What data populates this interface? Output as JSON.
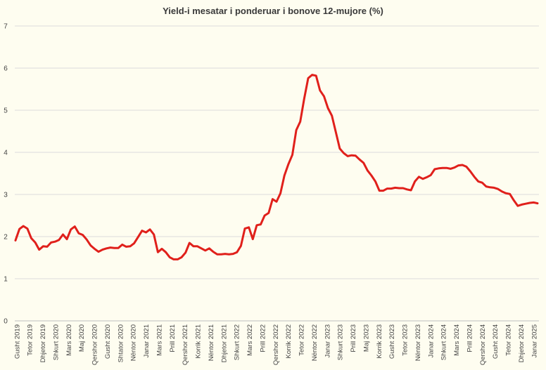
{
  "chart_data": {
    "type": "line",
    "title": "Yield-i mesatar i ponderuar i bonove 12-mujore (%)",
    "xlabel": "",
    "ylabel": "",
    "ylim": [
      0,
      7
    ],
    "yticks": [
      0,
      1,
      2,
      3,
      4,
      5,
      6,
      7
    ],
    "grid": true,
    "legend": "none",
    "line_color": "#e0201b",
    "x_tick_labels": [
      "Gusht 2019",
      "Tetor 2019",
      "Dhjetor 2019",
      "Shkurt 2020",
      "Mars 2020",
      "Maj 2020",
      "Qershor 2020",
      "Gusht 2020",
      "Shtator 2020",
      "Nëntor 2020",
      "Janar 2021",
      "Mars 2021",
      "Prill 2021",
      "Qershor 2021",
      "Korrik 2021",
      "Nëntor 2021",
      "Dhjetor 2021",
      "Shkurt 2022",
      "Mars 2022",
      "Prill 2022",
      "Qershor 2022",
      "Korrik 2022",
      "Tetor 2022",
      "Nëntor 2022",
      "Janar 2023",
      "Shkurt 2023",
      "Prill 2023",
      "Maj 2023",
      "Korrik 2023",
      "Gusht 2023",
      "Tetor 2023",
      "Nëntor 2023",
      "Janar 2024",
      "Shkurt 2024",
      "Mars 2024",
      "Prill 2024",
      "Qershor 2024",
      "Gusht 2024",
      "Tetor 2024",
      "Dhjetor 2024",
      "Janar 2025"
    ],
    "series": [
      {
        "values": [
          1.91,
          2.18,
          2.25,
          2.19,
          1.96,
          1.86,
          1.69,
          1.77,
          1.76,
          1.86,
          1.88,
          1.92,
          2.05,
          1.94,
          2.17,
          2.24,
          2.08,
          2.04,
          1.93,
          1.79,
          1.71,
          1.64,
          1.69,
          1.72,
          1.74,
          1.73,
          1.73,
          1.81,
          1.76,
          1.77,
          1.84,
          1.99,
          2.14,
          2.1,
          2.17,
          2.05,
          1.63,
          1.71,
          1.63,
          1.51,
          1.46,
          1.46,
          1.51,
          1.62,
          1.85,
          1.77,
          1.77,
          1.72,
          1.67,
          1.72,
          1.64,
          1.58,
          1.58,
          1.59,
          1.58,
          1.59,
          1.63,
          1.78,
          2.19,
          2.22,
          1.94,
          2.27,
          2.29,
          2.5,
          2.56,
          2.89,
          2.83,
          3.03,
          3.45,
          3.72,
          3.94,
          4.53,
          4.73,
          5.27,
          5.76,
          5.84,
          5.82,
          5.47,
          5.33,
          5.05,
          4.87,
          4.48,
          4.09,
          3.98,
          3.91,
          3.93,
          3.92,
          3.83,
          3.75,
          3.57,
          3.45,
          3.31,
          3.09,
          3.09,
          3.14,
          3.14,
          3.16,
          3.15,
          3.15,
          3.12,
          3.1,
          3.31,
          3.42,
          3.37,
          3.41,
          3.46,
          3.6,
          3.62,
          3.63,
          3.63,
          3.61,
          3.64,
          3.69,
          3.7,
          3.66,
          3.55,
          3.42,
          3.31,
          3.28,
          3.19,
          3.17,
          3.16,
          3.13,
          3.07,
          3.03,
          3.01,
          2.86,
          2.73,
          2.76,
          2.78,
          2.8,
          2.81,
          2.79
        ]
      }
    ]
  }
}
